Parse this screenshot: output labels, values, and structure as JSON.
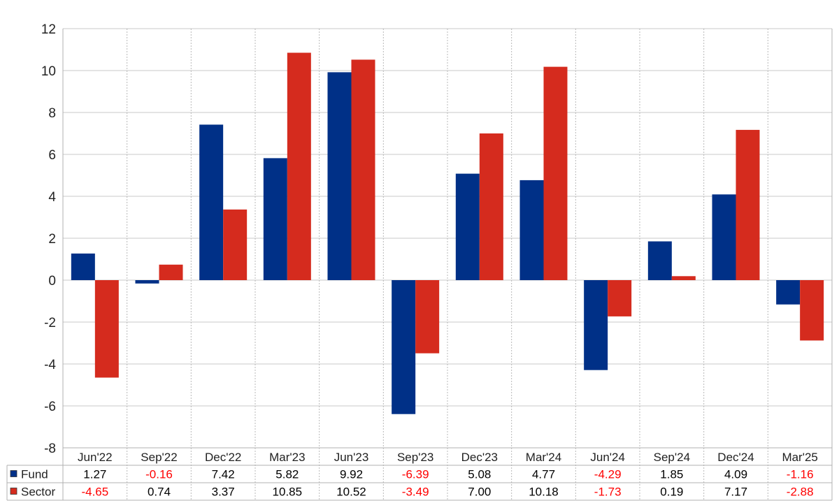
{
  "chart_data": {
    "type": "bar",
    "title": "",
    "xlabel": "",
    "ylabel": "",
    "ylim": [
      -8,
      12
    ],
    "yticks": [
      -8,
      -6,
      -4,
      -2,
      0,
      2,
      4,
      6,
      8,
      10,
      12
    ],
    "grid": true,
    "categories": [
      "Jun'22",
      "Sep'22",
      "Dec'22",
      "Mar'23",
      "Jun'23",
      "Sep'23",
      "Dec'23",
      "Mar'24",
      "Jun'24",
      "Sep'24",
      "Dec'24",
      "Mar'25"
    ],
    "series": [
      {
        "name": "Fund",
        "color": "#003087",
        "values": [
          1.27,
          -0.16,
          7.42,
          5.82,
          9.92,
          -6.39,
          5.08,
          4.77,
          -4.29,
          1.85,
          4.09,
          -1.16
        ],
        "labels": [
          "1.27",
          "-0.16",
          "7.42",
          "5.82",
          "9.92",
          "-6.39",
          "5.08",
          "4.77",
          "-4.29",
          "1.85",
          "4.09",
          "-1.16"
        ]
      },
      {
        "name": "Sector",
        "color": "#d52b1e",
        "values": [
          -4.65,
          0.74,
          3.37,
          10.85,
          10.52,
          -3.49,
          7.0,
          10.18,
          -1.73,
          0.19,
          7.17,
          -2.88
        ],
        "labels": [
          "-4.65",
          "0.74",
          "3.37",
          "10.85",
          "10.52",
          "-3.49",
          "7.00",
          "10.18",
          "-1.73",
          "0.19",
          "7.17",
          "-2.88"
        ]
      }
    ],
    "negative_value_color": "#ff0000",
    "positive_value_color": "#000000",
    "legend_placement": "data-table-left"
  }
}
